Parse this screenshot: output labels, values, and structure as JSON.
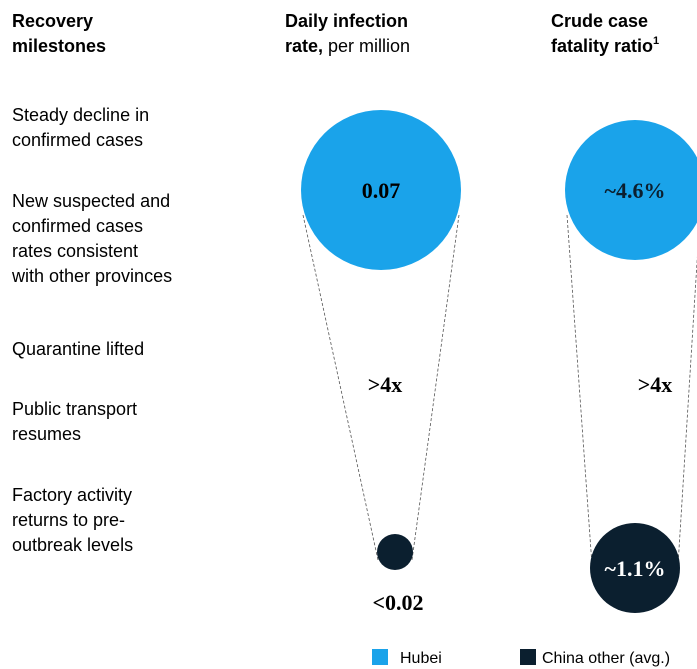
{
  "headers": [
    {
      "lines": [
        "Recovery",
        "milestones"
      ]
    },
    {
      "lines": [
        "Daily infection"
      ],
      "bold_tail": "rate,",
      "normal_tail": "per million"
    },
    {
      "lines": [
        "Crude case"
      ],
      "bold_tail": "fatality ratio",
      "sup": "1"
    }
  ],
  "milestones": [
    [
      "Steady decline in",
      "confirmed cases"
    ],
    [
      "New suspected and",
      "confirmed cases",
      "rates consistent",
      "with other provinces"
    ],
    [
      "Quarantine lifted"
    ],
    [
      "Public transport",
      "resumes"
    ],
    [
      "Factory activity",
      "returns to pre-",
      "outbreak levels"
    ]
  ],
  "infection": {
    "hubei": "0.07",
    "other": "<0.02",
    "ratio": ">4x"
  },
  "fatality": {
    "hubei": "~4.6%",
    "other": "~1.1%",
    "ratio": ">4x"
  },
  "legend": [
    "Hubei",
    "China other (avg.)"
  ]
}
